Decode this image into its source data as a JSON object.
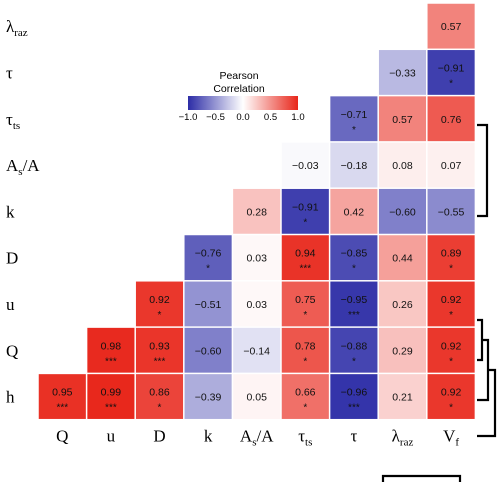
{
  "chart_data": {
    "type": "heatmap",
    "variables": [
      {
        "key": "h",
        "base": "h",
        "sub": ""
      },
      {
        "key": "Q",
        "base": "Q",
        "sub": ""
      },
      {
        "key": "u",
        "base": "u",
        "sub": ""
      },
      {
        "key": "D",
        "base": "D",
        "sub": ""
      },
      {
        "key": "k",
        "base": "k",
        "sub": ""
      },
      {
        "key": "As/A",
        "base": "A",
        "sub": "s",
        "rest": "/A"
      },
      {
        "key": "tau_ts",
        "base": "τ",
        "sub": "ts"
      },
      {
        "key": "tau",
        "base": "τ",
        "sub": ""
      },
      {
        "key": "lambda_raz",
        "base": "λ",
        "sub": "raz"
      },
      {
        "key": "Vf",
        "base": "V",
        "sub": "f"
      }
    ],
    "row_order": [
      "lambda_raz",
      "tau",
      "tau_ts",
      "As/A",
      "k",
      "D",
      "u",
      "Q",
      "h"
    ],
    "column_order": [
      "Q",
      "u",
      "D",
      "k",
      "As/A",
      "tau_ts",
      "tau",
      "lambda_raz",
      "Vf"
    ],
    "cells": [
      {
        "row": "lambda_raz",
        "col": "Vf",
        "r": 0.57,
        "label": "0.57",
        "sig": ""
      },
      {
        "row": "tau",
        "col": "lambda_raz",
        "r": -0.33,
        "label": "−0.33",
        "sig": ""
      },
      {
        "row": "tau",
        "col": "Vf",
        "r": -0.91,
        "label": "−0.91",
        "sig": "*"
      },
      {
        "row": "tau_ts",
        "col": "tau",
        "r": -0.71,
        "label": "−0.71",
        "sig": "*"
      },
      {
        "row": "tau_ts",
        "col": "lambda_raz",
        "r": 0.57,
        "label": "0.57",
        "sig": ""
      },
      {
        "row": "tau_ts",
        "col": "Vf",
        "r": 0.76,
        "label": "0.76",
        "sig": ""
      },
      {
        "row": "As/A",
        "col": "tau_ts",
        "r": -0.03,
        "label": "−0.03",
        "sig": ""
      },
      {
        "row": "As/A",
        "col": "tau",
        "r": -0.18,
        "label": "−0.18",
        "sig": ""
      },
      {
        "row": "As/A",
        "col": "lambda_raz",
        "r": 0.08,
        "label": "0.08",
        "sig": ""
      },
      {
        "row": "As/A",
        "col": "Vf",
        "r": 0.07,
        "label": "0.07",
        "sig": ""
      },
      {
        "row": "k",
        "col": "As/A",
        "r": 0.28,
        "label": "0.28",
        "sig": ""
      },
      {
        "row": "k",
        "col": "tau_ts",
        "r": -0.91,
        "label": "−0.91",
        "sig": "*"
      },
      {
        "row": "k",
        "col": "tau",
        "r": 0.42,
        "label": "0.42",
        "sig": ""
      },
      {
        "row": "k",
        "col": "lambda_raz",
        "r": -0.6,
        "label": "−0.60",
        "sig": ""
      },
      {
        "row": "k",
        "col": "Vf",
        "r": -0.55,
        "label": "−0.55",
        "sig": ""
      },
      {
        "row": "D",
        "col": "k",
        "r": -0.76,
        "label": "−0.76",
        "sig": "*"
      },
      {
        "row": "D",
        "col": "As/A",
        "r": 0.03,
        "label": "0.03",
        "sig": ""
      },
      {
        "row": "D",
        "col": "tau_ts",
        "r": 0.94,
        "label": "0.94",
        "sig": "***"
      },
      {
        "row": "D",
        "col": "tau",
        "r": -0.85,
        "label": "−0.85",
        "sig": "*"
      },
      {
        "row": "D",
        "col": "lambda_raz",
        "r": 0.44,
        "label": "0.44",
        "sig": ""
      },
      {
        "row": "D",
        "col": "Vf",
        "r": 0.89,
        "label": "0.89",
        "sig": "*"
      },
      {
        "row": "u",
        "col": "D",
        "r": 0.92,
        "label": "0.92",
        "sig": "*"
      },
      {
        "row": "u",
        "col": "k",
        "r": -0.51,
        "label": "−0.51",
        "sig": ""
      },
      {
        "row": "u",
        "col": "As/A",
        "r": 0.03,
        "label": "0.03",
        "sig": ""
      },
      {
        "row": "u",
        "col": "tau_ts",
        "r": 0.75,
        "label": "0.75",
        "sig": "*"
      },
      {
        "row": "u",
        "col": "tau",
        "r": -0.95,
        "label": "−0.95",
        "sig": "***"
      },
      {
        "row": "u",
        "col": "lambda_raz",
        "r": 0.26,
        "label": "0.26",
        "sig": ""
      },
      {
        "row": "u",
        "col": "Vf",
        "r": 0.92,
        "label": "0.92",
        "sig": "*"
      },
      {
        "row": "Q",
        "col": "u",
        "r": 0.98,
        "label": "0.98",
        "sig": "***"
      },
      {
        "row": "Q",
        "col": "D",
        "r": 0.93,
        "label": "0.93",
        "sig": "***"
      },
      {
        "row": "Q",
        "col": "k",
        "r": -0.6,
        "label": "−0.60",
        "sig": ""
      },
      {
        "row": "Q",
        "col": "As/A",
        "r": -0.14,
        "label": "−0.14",
        "sig": ""
      },
      {
        "row": "Q",
        "col": "tau_ts",
        "r": 0.78,
        "label": "0.78",
        "sig": "*"
      },
      {
        "row": "Q",
        "col": "tau",
        "r": -0.88,
        "label": "−0.88",
        "sig": "*"
      },
      {
        "row": "Q",
        "col": "lambda_raz",
        "r": 0.29,
        "label": "0.29",
        "sig": ""
      },
      {
        "row": "Q",
        "col": "Vf",
        "r": 0.92,
        "label": "0.92",
        "sig": "*"
      },
      {
        "row": "h",
        "col": "Q",
        "r": 0.95,
        "label": "0.95",
        "sig": "***"
      },
      {
        "row": "h",
        "col": "u",
        "r": 0.99,
        "label": "0.99",
        "sig": "***"
      },
      {
        "row": "h",
        "col": "D",
        "r": 0.86,
        "label": "0.86",
        "sig": "*"
      },
      {
        "row": "h",
        "col": "k",
        "r": -0.39,
        "label": "−0.39",
        "sig": ""
      },
      {
        "row": "h",
        "col": "As/A",
        "r": 0.05,
        "label": "0.05",
        "sig": ""
      },
      {
        "row": "h",
        "col": "tau_ts",
        "r": 0.66,
        "label": "0.66",
        "sig": "*"
      },
      {
        "row": "h",
        "col": "tau",
        "r": -0.96,
        "label": "−0.96",
        "sig": "***"
      },
      {
        "row": "h",
        "col": "lambda_raz",
        "r": 0.21,
        "label": "0.21",
        "sig": ""
      },
      {
        "row": "h",
        "col": "Vf",
        "r": 0.92,
        "label": "0.92",
        "sig": "*"
      }
    ],
    "color_scale": {
      "low": "#2c2ca6",
      "mid": "#ffffff",
      "high": "#e8261a",
      "range": [
        -1.0,
        1.0
      ],
      "title_lines": [
        "Pearson",
        "Correlation"
      ],
      "tick_labels": [
        "−1.0",
        "−0.5",
        "0.0",
        "0.5",
        "1.0"
      ],
      "tick_values": [
        -1.0,
        -0.5,
        0.0,
        0.5,
        1.0
      ]
    },
    "dendrograms": [
      "right-side clustering brackets",
      "bottom bracket under λraz and Vf"
    ],
    "grid": true
  }
}
